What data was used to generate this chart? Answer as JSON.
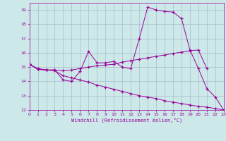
{
  "xlabel": "Windchill (Refroidissement éolien,°C)",
  "ylabel": "",
  "bg_color": "#cce8e8",
  "line_color": "#990099",
  "grid_color": "#aabbcc",
  "x": [
    0,
    1,
    2,
    3,
    4,
    5,
    6,
    7,
    8,
    9,
    10,
    11,
    12,
    13,
    14,
    15,
    16,
    17,
    18,
    19,
    20,
    21,
    22,
    23
  ],
  "y_main": [
    15.2,
    14.9,
    14.8,
    14.8,
    14.1,
    14.0,
    14.7,
    16.1,
    15.3,
    15.3,
    15.4,
    15.0,
    14.9,
    17.0,
    19.2,
    19.0,
    18.9,
    18.85,
    18.4,
    16.2,
    14.9,
    13.5,
    12.9,
    12.0
  ],
  "y_line2": [
    15.2,
    14.85,
    14.8,
    14.8,
    14.75,
    14.8,
    14.9,
    15.0,
    15.1,
    15.15,
    15.2,
    15.35,
    15.45,
    15.55,
    15.65,
    15.75,
    15.85,
    15.95,
    16.05,
    16.15,
    16.2,
    14.9,
    null,
    null
  ],
  "y_line3": [
    15.2,
    14.85,
    14.8,
    14.75,
    14.4,
    14.25,
    14.1,
    13.95,
    13.75,
    13.6,
    13.45,
    13.3,
    13.15,
    13.0,
    12.9,
    12.8,
    12.65,
    12.55,
    12.45,
    12.35,
    12.25,
    12.2,
    12.1,
    12.0
  ],
  "xlim": [
    0,
    23
  ],
  "ylim": [
    12,
    19.5
  ],
  "yticks": [
    12,
    13,
    14,
    15,
    16,
    17,
    18,
    19
  ],
  "xticks": [
    0,
    1,
    2,
    3,
    4,
    5,
    6,
    7,
    8,
    9,
    10,
    11,
    12,
    13,
    14,
    15,
    16,
    17,
    18,
    19,
    20,
    21,
    22,
    23
  ]
}
